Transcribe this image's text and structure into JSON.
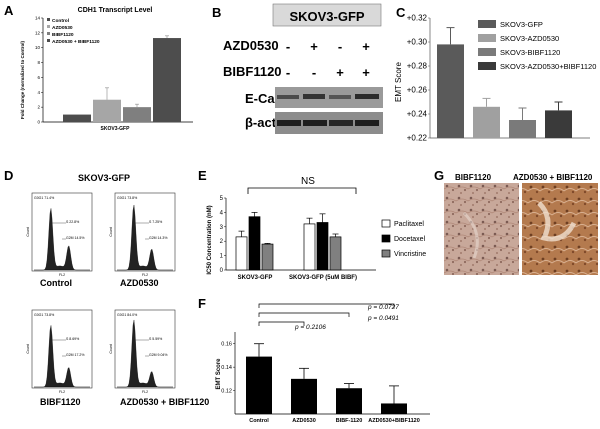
{
  "panel_labels": {
    "a": "A",
    "b": "B",
    "c": "C",
    "d": "D",
    "e": "E",
    "f": "F",
    "g": "G"
  },
  "colors": {
    "black": "#000000",
    "dark": "#4d4d4d",
    "mid": "#7f7f7f",
    "light": "#a6a6a6",
    "panelC_1": "#5a5a5a",
    "panelC_2": "#a0a0a0",
    "panelC_3": "#7a7a7a",
    "panelC_4": "#3a3a3a"
  },
  "panel_a": {
    "title": "CDH1 Transcript Level",
    "ylabel": "Fold Change (normalized to Control)",
    "xlabel": "SKOV3-GFP",
    "legend": [
      "Control",
      "AZD0530",
      "BIBF1120",
      "AZD0530 + BIBF1120"
    ]
  },
  "panel_b": {
    "title": "SKOV3-GFP",
    "row_labels": [
      "AZD0530",
      "BIBF1120",
      "E-Cad",
      "β-actin"
    ],
    "azd_signs": [
      "-",
      "+",
      "-",
      "+"
    ],
    "bibf_signs": [
      "-",
      "-",
      "+",
      "+"
    ]
  },
  "panel_c": {
    "ylabel": "EMT Score",
    "ticks": [
      "+0.32",
      "+0.30",
      "+0.28",
      "+0.26",
      "+0.24",
      "+0.22"
    ],
    "legend": [
      "SKOV3-GFP",
      "SKOV3-AZD0530",
      "SKOV3-BIBF1120",
      "SKOV3-AZD0530+BIBF1120"
    ]
  },
  "panel_d": {
    "title": "SKOV3-GFP",
    "labels": [
      "Control",
      "AZD0530",
      "BIBF1120",
      "AZD0530 + BIBF1120"
    ],
    "axis_x": "FL2",
    "axis_y": "Count",
    "gates": [
      [
        "G0G1 71.4%",
        "S 22.8%",
        "G2M 14.5%"
      ],
      [
        "G0G1 73.8%",
        "S 7.25%",
        "G2M 14.3%"
      ],
      [
        "G0G1 73.8%",
        "S 8.69%",
        "G2M 17.2%"
      ],
      [
        "G0G1 84.0%",
        "S 5.59%",
        "G2M 9.04%"
      ]
    ]
  },
  "panel_e": {
    "sig_label": "NS",
    "ylabel": "IC50 Concentration (nM)",
    "ticks": [
      "0",
      "1",
      "2",
      "3",
      "4",
      "5"
    ],
    "groups": [
      "SKOV3-GFP",
      "SKOV3-GFP (5uM BIBF)"
    ],
    "legend": [
      "Paclitaxel",
      "Docetaxel",
      "Vincristine"
    ]
  },
  "panel_f": {
    "ylabel": "EMT Score",
    "ticks": [
      "0.16",
      "0.14",
      "0.12"
    ],
    "categories": [
      "Control",
      "AZD0530",
      "BIBF-1120",
      "AZD0530+BIBF1120"
    ],
    "pvalues": [
      "p = 0.2106",
      "p = 0.0491",
      "p = 0.0727"
    ]
  },
  "panel_g": {
    "labels": [
      "BIBF1120",
      "AZD0530 + BIBF1120"
    ]
  },
  "chart_data": [
    {
      "id": "A",
      "type": "bar",
      "categories": [
        "Control",
        "AZD0530",
        "BIBF1120",
        "AZD0530 + BIBF1120"
      ],
      "values": [
        1.0,
        3.0,
        2.0,
        11.3
      ],
      "errors": [
        0,
        1.6,
        0.4,
        0.3
      ],
      "ylim": [
        0,
        14
      ],
      "title": "CDH1 Transcript Level",
      "ylabel": "Fold Change (normalized to Control)",
      "xlabel": "SKOV3-GFP"
    },
    {
      "id": "C",
      "type": "bar",
      "categories": [
        "SKOV3-GFP",
        "SKOV3-AZD0530",
        "SKOV3-BIBF1120",
        "SKOV3-AZD0530+BIBF1120"
      ],
      "values": [
        0.298,
        0.246,
        0.235,
        0.243
      ],
      "errors": [
        0.014,
        0.007,
        0.01,
        0.007
      ],
      "ylim": [
        0.22,
        0.32
      ],
      "ylabel": "EMT Score"
    },
    {
      "id": "E",
      "type": "bar",
      "categories": [
        "SKOV3-GFP",
        "SKOV3-GFP (5uM BIBF)"
      ],
      "series": [
        {
          "name": "Paclitaxel",
          "values": [
            2.3,
            3.2
          ],
          "errors": [
            0.4,
            0.4
          ]
        },
        {
          "name": "Docetaxel",
          "values": [
            3.7,
            3.3
          ],
          "errors": [
            0.3,
            0.6
          ]
        },
        {
          "name": "Vincristine",
          "values": [
            1.8,
            2.3
          ],
          "errors": [
            0.05,
            0.2
          ]
        }
      ],
      "ylim": [
        0,
        5
      ],
      "ylabel": "IC50 Concentration (nM)"
    },
    {
      "id": "F",
      "type": "bar",
      "categories": [
        "Control",
        "AZD0530",
        "BIBF-1120",
        "AZD0530+BIBF1120"
      ],
      "values": [
        0.149,
        0.13,
        0.122,
        0.109
      ],
      "errors": [
        0.011,
        0.009,
        0.004,
        0.015
      ],
      "ylim": [
        0.1,
        0.17
      ],
      "ylabel": "EMT Score"
    }
  ]
}
